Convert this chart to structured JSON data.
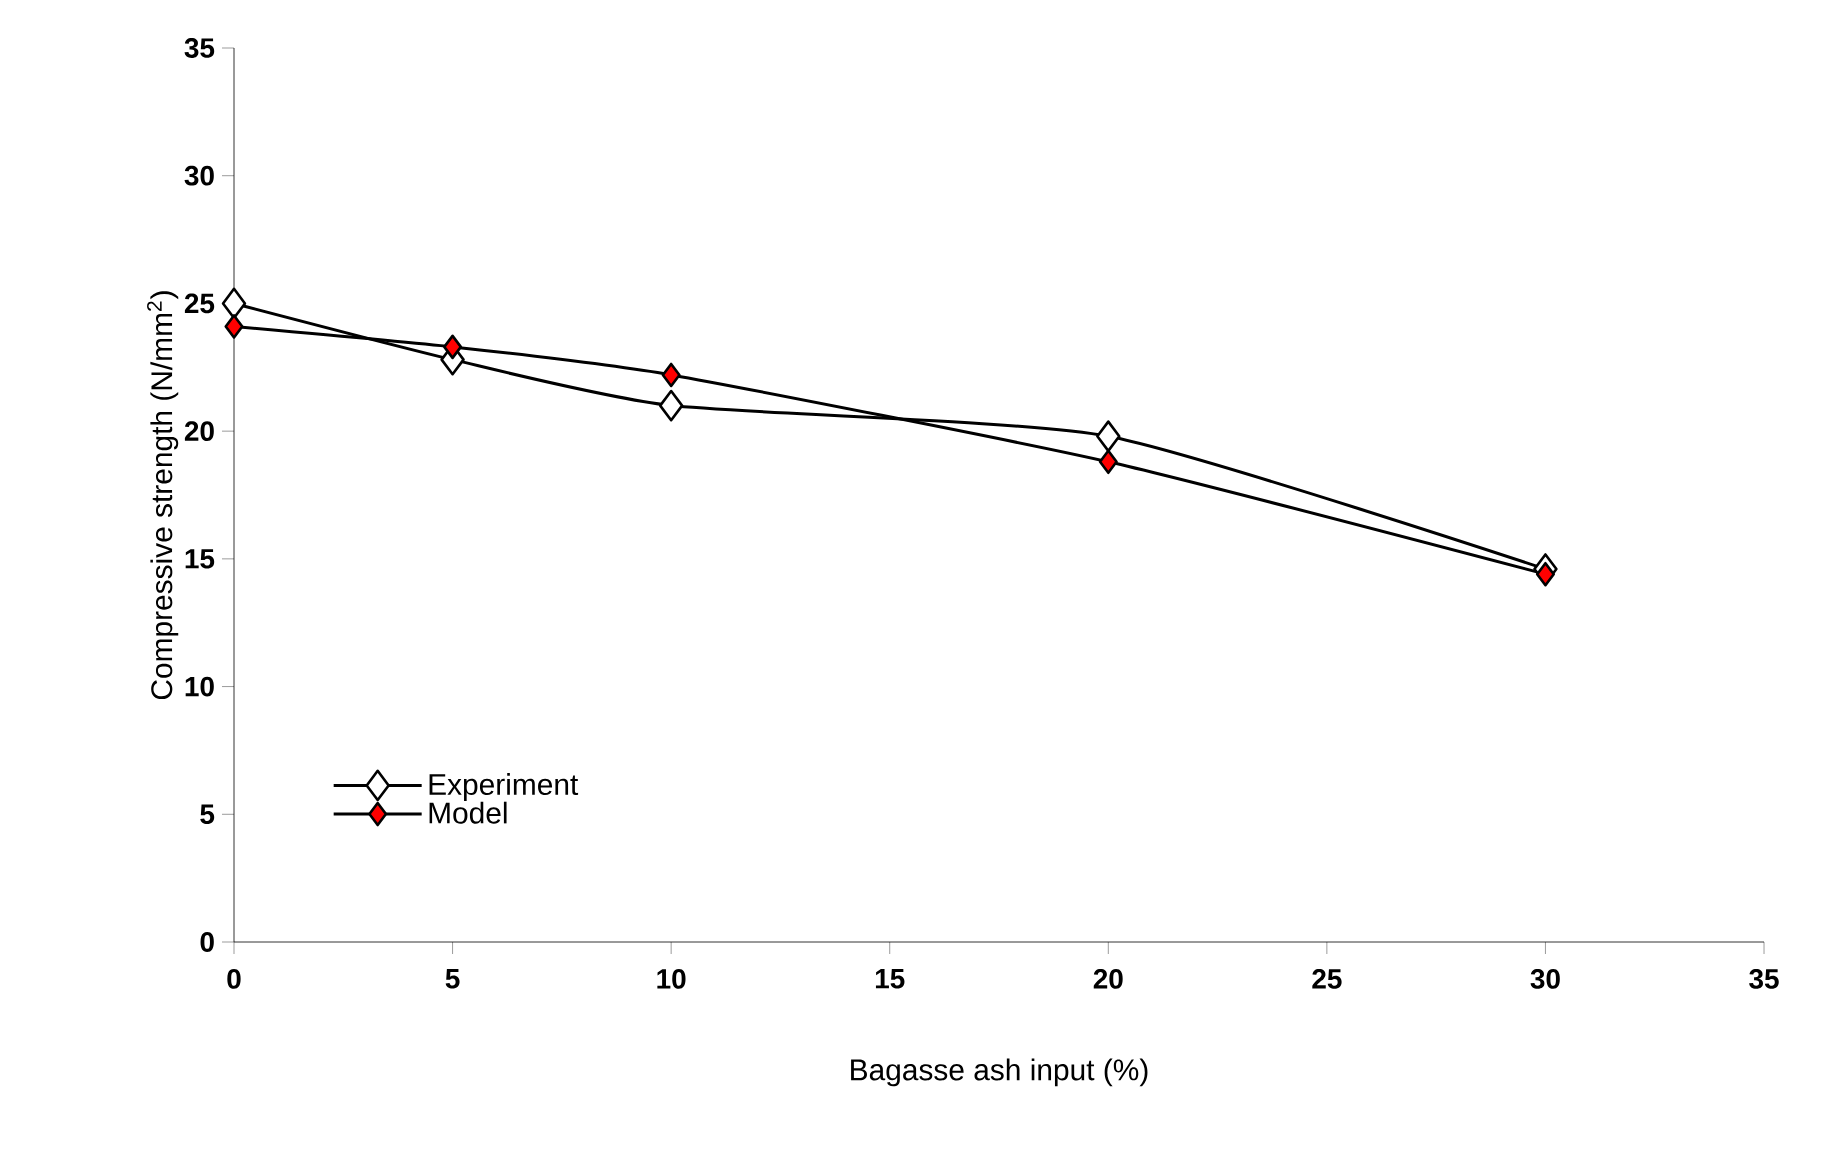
{
  "chart_data": {
    "type": "line",
    "xlabel": "Bagasse ash input (%)",
    "ylabel": "Compressive strength (N/mm$^{2}$)",
    "x": [
      0,
      5,
      10,
      20,
      30
    ],
    "series": [
      {
        "name": "Experiment",
        "color": "#ffffff",
        "values": [
          25.0,
          22.8,
          21.0,
          19.8,
          14.6
        ]
      },
      {
        "name": "Model",
        "color": "#ff0000",
        "values": [
          24.1,
          23.3,
          22.2,
          18.8,
          14.4
        ]
      }
    ],
    "xlim": [
      0,
      35
    ],
    "ylim": [
      0,
      35
    ],
    "xticks": [
      0,
      5,
      10,
      15,
      20,
      25,
      30,
      35
    ],
    "yticks": [
      0,
      5,
      10,
      15,
      20,
      25,
      30,
      35
    ],
    "grid": false,
    "legend": "bottom left",
    "marker": "diamond",
    "line_style": "solid"
  }
}
